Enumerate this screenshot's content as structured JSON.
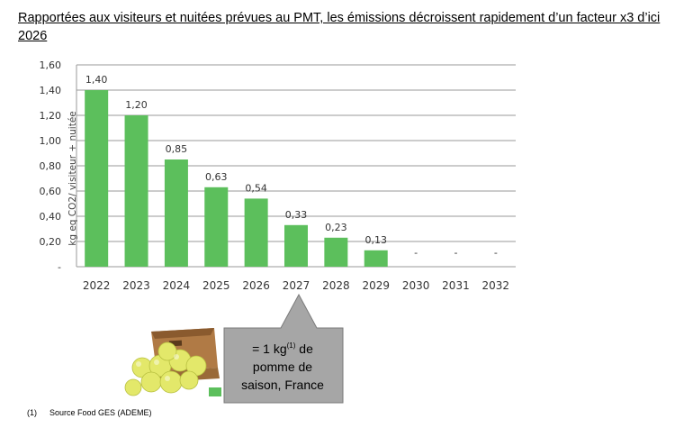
{
  "title": "Rapportées aux visiteurs et nuitées prévues au PMT, les émissions décroissent rapidement d’un facteur x3 d’ici 2026",
  "chart_data": {
    "type": "bar",
    "categories": [
      "2022",
      "2023",
      "2024",
      "2025",
      "2026",
      "2027",
      "2028",
      "2029",
      "2030",
      "2031",
      "2032"
    ],
    "values": [
      1.4,
      1.2,
      0.85,
      0.63,
      0.54,
      0.33,
      0.23,
      0.13,
      0,
      0,
      0
    ],
    "data_labels": [
      "1,40",
      "1,20",
      "0,85",
      "0,63",
      "0,54",
      "0,33",
      "0,23",
      "0,13",
      "-",
      "-",
      "-"
    ],
    "ylabel": "kg eq CO2/ visiteur + nuitée",
    "xlabel": "",
    "ylim": [
      0,
      1.6
    ],
    "yticks": [
      0,
      0.2,
      0.4,
      0.6,
      0.8,
      1.0,
      1.2,
      1.4,
      1.6
    ],
    "ytick_labels": [
      "-",
      "0,20",
      "0,40",
      "0,60",
      "0,80",
      "1,00",
      "1,20",
      "1,40",
      "1,60"
    ],
    "grid": true,
    "bar_color": "#5cbf5c"
  },
  "callout": {
    "line1_prefix": "= 1  kg",
    "line1_sup": "(1)",
    "line1_suffix": " de",
    "line2": "pomme de",
    "line3": "saison, France"
  },
  "footnote": {
    "mark": "(1)",
    "text": "Source Food GES (ADEME)"
  },
  "colors": {
    "bar": "#5cbf5c",
    "grid": "#999999",
    "callout_fill": "#a6a6a6"
  }
}
